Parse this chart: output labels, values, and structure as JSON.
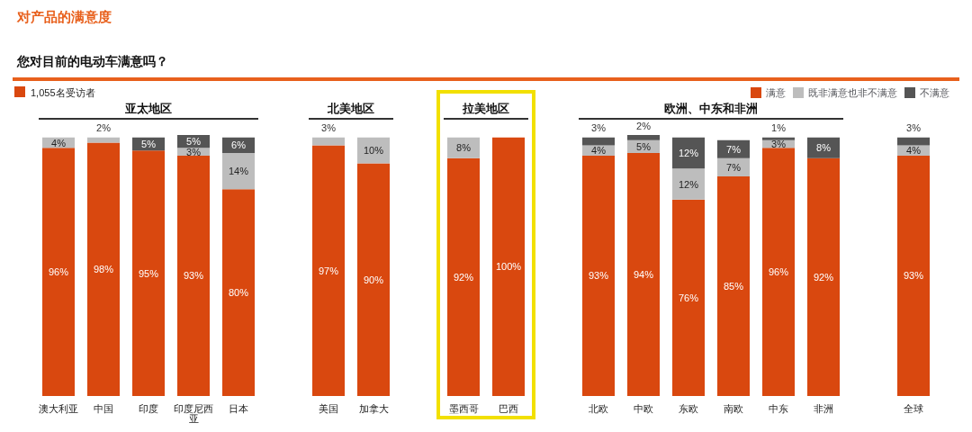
{
  "chart_data": {
    "type": "bar",
    "stacked": true,
    "title": "对产品的满意度",
    "subtitle": "您对目前的电动车满意吗？",
    "categories": [
      "澳大利亚",
      "中国",
      "印度",
      "印度尼西亚",
      "日本",
      null,
      "美国",
      "加拿大",
      null,
      "墨西哥",
      "巴西",
      null,
      "北欧",
      "中欧",
      "东欧",
      "南欧",
      "中东",
      "非洲",
      null,
      "全球"
    ],
    "series": [
      {
        "name": "满意",
        "color": "#d9480f",
        "values": [
          96,
          98,
          95,
          93,
          80,
          null,
          97,
          90,
          null,
          92,
          100,
          null,
          93,
          94,
          76,
          85,
          96,
          92,
          null,
          93
        ],
        "value_labels": [
          "96%",
          "98%",
          "95%",
          "93%",
          "80%",
          null,
          "97%",
          "90%",
          null,
          "92%",
          "100%",
          null,
          "93%",
          "94%",
          "76%",
          "85%",
          "96%",
          "92%",
          null,
          "93%"
        ]
      },
      {
        "name": "既非满意也非不满意",
        "color": "#bdbdbd",
        "values": [
          4,
          2,
          0,
          3,
          14,
          null,
          3,
          10,
          null,
          8,
          0,
          null,
          4,
          5,
          12,
          7,
          3,
          0,
          null,
          4
        ],
        "value_labels": [
          "4%",
          "2%",
          null,
          "3%",
          "14%",
          null,
          "3%",
          "10%",
          null,
          "8%",
          null,
          null,
          "4%",
          "5%",
          "12%",
          "7%",
          "3%",
          null,
          null,
          "4%"
        ]
      },
      {
        "name": "不满意",
        "color": "#555555",
        "values": [
          0,
          0,
          5,
          5,
          6,
          null,
          0,
          0,
          null,
          0,
          0,
          null,
          3,
          2,
          12,
          7,
          1,
          8,
          null,
          3
        ],
        "value_labels": [
          null,
          null,
          "5%",
          "5%",
          "6%",
          null,
          null,
          null,
          null,
          null,
          null,
          null,
          "3%",
          "2%",
          "12%",
          "7%",
          "1%",
          "8%",
          null,
          "3%"
        ]
      }
    ],
    "annotations": [
      "1,055名受访者",
      "亚太地区",
      "北美地区",
      "拉美地区",
      "欧洲、中东和非洲"
    ],
    "legend": "top right"
  }
}
